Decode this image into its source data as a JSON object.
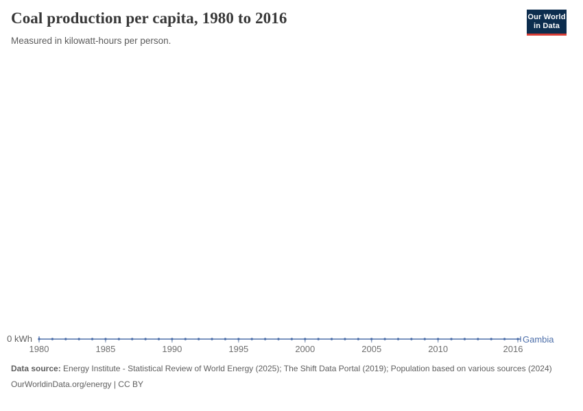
{
  "header": {
    "title": "Coal production per capita, 1980 to 2016",
    "subtitle": "Measured in kilowatt-hours per person.",
    "logo": {
      "line1": "Our World",
      "line2": "in Data",
      "bg_color": "#0c2d4e",
      "accent_color": "#d73c34"
    }
  },
  "chart_data": {
    "type": "line",
    "title": "Coal production per capita, 1980 to 2016",
    "subtitle": "Measured in kilowatt-hours per person.",
    "unit": "kilowatt-hours per person",
    "xlim": [
      1980,
      2016
    ],
    "ylim": [
      0,
      0
    ],
    "grid": false,
    "legend_position": "end-of-line",
    "x_ticks": [
      1980,
      1985,
      1990,
      1995,
      2000,
      2005,
      2010,
      2016
    ],
    "y_ticks": [
      "0 kWh"
    ],
    "tick_color": "#8798b5",
    "tick_label_color": "#6e6e6e",
    "series": [
      {
        "name": "Gambia",
        "color": "#4c6ea9",
        "x": [
          1980,
          1981,
          1982,
          1983,
          1984,
          1985,
          1986,
          1987,
          1988,
          1989,
          1990,
          1991,
          1992,
          1993,
          1994,
          1995,
          1996,
          1997,
          1998,
          1999,
          2000,
          2001,
          2002,
          2003,
          2004,
          2005,
          2006,
          2007,
          2008,
          2009,
          2010,
          2011,
          2012,
          2013,
          2014,
          2015,
          2016
        ],
        "values": [
          0,
          0,
          0,
          0,
          0,
          0,
          0,
          0,
          0,
          0,
          0,
          0,
          0,
          0,
          0,
          0,
          0,
          0,
          0,
          0,
          0,
          0,
          0,
          0,
          0,
          0,
          0,
          0,
          0,
          0,
          0,
          0,
          0,
          0,
          0,
          0,
          0
        ]
      }
    ]
  },
  "footer": {
    "source_label": "Data source:",
    "source_text": " Energy Institute - Statistical Review of World Energy (2025); The Shift Data Portal (2019); Population based on various sources (2024)",
    "license_text": "OurWorldinData.org/energy | CC BY"
  }
}
